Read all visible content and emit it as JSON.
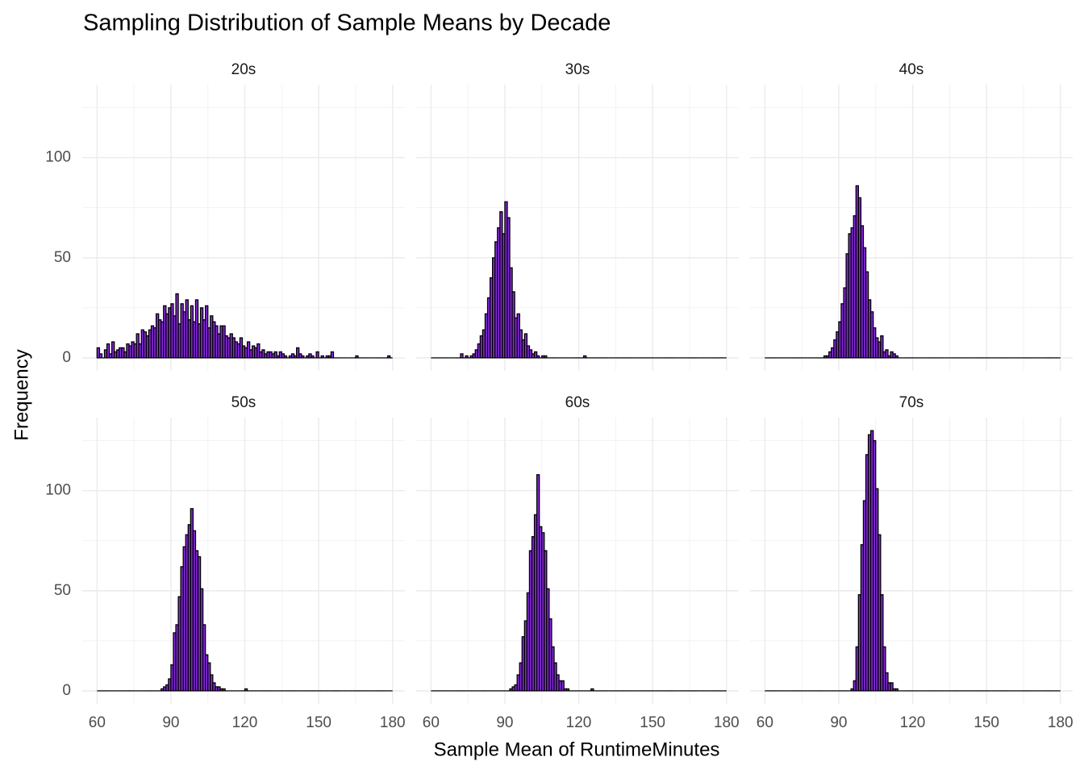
{
  "chart_data": {
    "type": "histogram",
    "title": "Sampling Distribution of Sample Means by Decade",
    "xlabel": "Sample Mean of RuntimeMinutes",
    "ylabel": "Frequency",
    "fill": "#8a2be2",
    "edgecolor": "#000000",
    "grid": true,
    "xlim": [
      54,
      185
    ],
    "xticks": [
      60,
      90,
      120,
      150,
      180
    ],
    "ylim": [
      -6.5,
      136.5
    ],
    "yticks": [
      0,
      50,
      100
    ],
    "bins": [
      60,
      61,
      62,
      63,
      64,
      65,
      66,
      67,
      68,
      69,
      70,
      71,
      72,
      73,
      74,
      75,
      76,
      77,
      78,
      79,
      80,
      81,
      82,
      83,
      84,
      85,
      86,
      87,
      88,
      89,
      90,
      91,
      92,
      93,
      94,
      95,
      96,
      97,
      98,
      99,
      100,
      101,
      102,
      103,
      104,
      105,
      106,
      107,
      108,
      109,
      110,
      111,
      112,
      113,
      114,
      115,
      116,
      117,
      118,
      119,
      120,
      121,
      122,
      123,
      124,
      125,
      126,
      127,
      128,
      129,
      130,
      131,
      132,
      133,
      134,
      135,
      136,
      137,
      138,
      139,
      140,
      141,
      142,
      143,
      144,
      145,
      146,
      147,
      148,
      149,
      150,
      151,
      152,
      153,
      154,
      155,
      156,
      157,
      158,
      159,
      160,
      161,
      162,
      163,
      164,
      165,
      166,
      167,
      168,
      169,
      170,
      171,
      172,
      173,
      174,
      175,
      176,
      177,
      178,
      179,
      180
    ],
    "facets": [
      {
        "name": "20s",
        "counts": [
          5,
          2,
          0,
          4,
          7,
          2,
          8,
          3,
          4,
          5,
          5,
          3,
          7,
          6,
          8,
          7,
          12,
          7,
          14,
          13,
          11,
          14,
          16,
          15,
          22,
          19,
          18,
          26,
          22,
          25,
          27,
          21,
          32,
          17,
          27,
          23,
          29,
          19,
          26,
          18,
          29,
          17,
          25,
          19,
          26,
          15,
          21,
          18,
          16,
          12,
          16,
          16,
          11,
          10,
          12,
          10,
          8,
          7,
          10,
          6,
          5,
          8,
          4,
          6,
          5,
          7,
          3,
          4,
          2,
          3,
          3,
          2,
          3,
          1,
          3,
          2,
          1,
          0,
          1,
          2,
          1,
          5,
          2,
          1,
          0,
          1,
          2,
          1,
          0,
          3,
          0,
          1,
          0,
          1,
          1,
          3,
          0,
          0,
          0,
          0,
          0,
          0,
          0,
          0,
          0,
          1,
          0,
          0,
          0,
          0,
          0,
          0,
          0,
          0,
          0,
          0,
          0,
          0,
          1,
          0
        ]
      },
      {
        "name": "30s",
        "counts": [
          0,
          0,
          0,
          0,
          0,
          0,
          0,
          0,
          0,
          0,
          0,
          0,
          2,
          0,
          1,
          0,
          1,
          2,
          4,
          7,
          11,
          14,
          22,
          30,
          40,
          50,
          58,
          65,
          73,
          62,
          78,
          70,
          45,
          33,
          20,
          22,
          14,
          9,
          12,
          6,
          4,
          2,
          3,
          1,
          0,
          1,
          1,
          0,
          0,
          0,
          0,
          0,
          0,
          0,
          0,
          0,
          0,
          0,
          0,
          0,
          0,
          0,
          1,
          0,
          0,
          0,
          0,
          0,
          0,
          0,
          0,
          0,
          0,
          0,
          0,
          0,
          0,
          0,
          0,
          0,
          0,
          0,
          0,
          0,
          0,
          0,
          0,
          0,
          0,
          0,
          0,
          0,
          0,
          0,
          0,
          0,
          0,
          0,
          0,
          0,
          0,
          0,
          0,
          0,
          0,
          0,
          0,
          0,
          0,
          0,
          0,
          0,
          0,
          0,
          0,
          0,
          0,
          0,
          0,
          0
        ]
      },
      {
        "name": "40s",
        "counts": [
          0,
          0,
          0,
          0,
          0,
          0,
          0,
          0,
          0,
          0,
          0,
          0,
          0,
          0,
          0,
          0,
          0,
          0,
          0,
          0,
          0,
          0,
          0,
          0,
          1,
          1,
          3,
          5,
          9,
          13,
          18,
          27,
          35,
          52,
          62,
          65,
          71,
          86,
          80,
          66,
          55,
          43,
          29,
          23,
          15,
          10,
          8,
          11,
          3,
          4,
          1,
          3,
          2,
          1,
          0,
          0,
          0,
          0,
          0,
          0,
          0,
          0,
          0,
          0,
          0,
          0,
          0,
          0,
          0,
          0,
          0,
          0,
          0,
          0,
          0,
          0,
          0,
          0,
          0,
          0,
          0,
          0,
          0,
          0,
          0,
          0,
          0,
          0,
          0,
          0,
          0,
          0,
          0,
          0,
          0,
          0,
          0,
          0,
          0,
          0,
          0,
          0,
          0,
          0,
          0,
          0,
          0,
          0,
          0,
          0,
          0,
          0,
          0,
          0,
          0,
          0,
          0,
          0,
          0,
          0
        ]
      },
      {
        "name": "50s",
        "counts": [
          0,
          0,
          0,
          0,
          0,
          0,
          0,
          0,
          0,
          0,
          0,
          0,
          0,
          0,
          0,
          0,
          0,
          0,
          0,
          0,
          0,
          0,
          0,
          0,
          0,
          0,
          1,
          2,
          3,
          6,
          13,
          29,
          33,
          47,
          62,
          72,
          78,
          83,
          91,
          80,
          70,
          67,
          51,
          33,
          18,
          14,
          8,
          4,
          2,
          2,
          1,
          1,
          0,
          0,
          0,
          0,
          0,
          0,
          0,
          0,
          1,
          0,
          0,
          0,
          0,
          0,
          0,
          0,
          0,
          0,
          0,
          0,
          0,
          0,
          0,
          0,
          0,
          0,
          0,
          0,
          0,
          0,
          0,
          0,
          0,
          0,
          0,
          0,
          0,
          0,
          0,
          0,
          0,
          0,
          0,
          0,
          0,
          0,
          0,
          0,
          0,
          0,
          0,
          0,
          0,
          0,
          0,
          0,
          0,
          0,
          0,
          0,
          0,
          0,
          0,
          0,
          0,
          0,
          0,
          0
        ]
      },
      {
        "name": "60s",
        "counts": [
          0,
          0,
          0,
          0,
          0,
          0,
          0,
          0,
          0,
          0,
          0,
          0,
          0,
          0,
          0,
          0,
          0,
          0,
          0,
          0,
          0,
          0,
          0,
          0,
          0,
          0,
          0,
          0,
          0,
          0,
          0,
          0,
          1,
          2,
          3,
          8,
          14,
          27,
          35,
          49,
          70,
          77,
          88,
          108,
          82,
          79,
          70,
          51,
          36,
          22,
          14,
          8,
          5,
          5,
          1,
          1,
          0,
          0,
          0,
          0,
          0,
          0,
          0,
          0,
          0,
          1,
          0,
          0,
          0,
          0,
          0,
          0,
          0,
          0,
          0,
          0,
          0,
          0,
          0,
          0,
          0,
          0,
          0,
          0,
          0,
          0,
          0,
          0,
          0,
          0,
          0,
          0,
          0,
          0,
          0,
          0,
          0,
          0,
          0,
          0,
          0,
          0,
          0,
          0,
          0,
          0,
          0,
          0,
          0,
          0,
          0,
          0,
          0,
          0,
          0,
          0,
          0,
          0,
          0,
          0
        ]
      },
      {
        "name": "70s",
        "counts": [
          0,
          0,
          0,
          0,
          0,
          0,
          0,
          0,
          0,
          0,
          0,
          0,
          0,
          0,
          0,
          0,
          0,
          0,
          0,
          0,
          0,
          0,
          0,
          0,
          0,
          0,
          0,
          0,
          0,
          0,
          0,
          0,
          0,
          0,
          0,
          1,
          5,
          22,
          48,
          73,
          95,
          118,
          128,
          130,
          125,
          101,
          78,
          48,
          22,
          9,
          4,
          4,
          1,
          1,
          0,
          0,
          0,
          0,
          0,
          0,
          0,
          0,
          0,
          0,
          0,
          0,
          0,
          0,
          0,
          0,
          0,
          0,
          0,
          0,
          0,
          0,
          0,
          0,
          0,
          0,
          0,
          0,
          0,
          0,
          0,
          0,
          0,
          0,
          0,
          0,
          0,
          0,
          0,
          0,
          0,
          0,
          0,
          0,
          0,
          0,
          0,
          0,
          0,
          0,
          0,
          0,
          0,
          0,
          0,
          0,
          0,
          0,
          0,
          0,
          0,
          0,
          0,
          0,
          0,
          0
        ]
      }
    ]
  }
}
